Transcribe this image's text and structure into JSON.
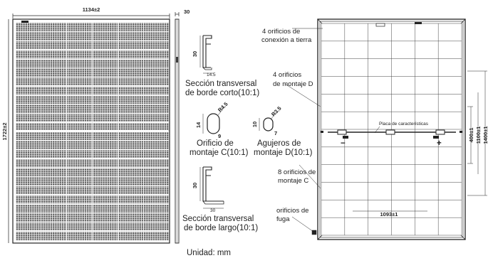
{
  "front": {
    "width_dim": "1134±2",
    "height_dim": "1722±2"
  },
  "side": {
    "thickness_dim": "30"
  },
  "short_section": {
    "height_dim": "30",
    "width_dim": "14.5",
    "caption_line1": "Sección transversal",
    "caption_line2": "de borde corto(10:1)"
  },
  "hole_c": {
    "height_dim": "14",
    "width_dim": "9",
    "radius_dim": "R4.5",
    "caption_line1": "Orificio de",
    "caption_line2": "montaje C(10:1)"
  },
  "hole_d": {
    "height_dim": "10",
    "width_dim": "7",
    "radius_dim": "R3.5",
    "caption_line1": "Agujeros de",
    "caption_line2": "montaje D(10:1)"
  },
  "long_section": {
    "height_dim": "30",
    "width_dim": "30",
    "caption_line1": "Sección transversal",
    "caption_line2": "de borde largo(10:1)"
  },
  "back": {
    "ground_holes_line1": "4 orificios de",
    "ground_holes_line2": "conexión a tierra",
    "d_holes_line1": "4 orificios",
    "d_holes_line2": "de montaje D",
    "nameplate": "Placa de características",
    "minus": "−",
    "plus": "+",
    "c_holes_line1": "8 orificios de",
    "c_holes_line2": "montaje C",
    "drain_line1": "orificios de",
    "drain_line2": "fuga",
    "dim_400": "400±1",
    "dim_1100": "1100±1",
    "dim_1400": "1400±1",
    "dim_1093": "1093±1"
  },
  "unit_label": "Unidad: mm"
}
